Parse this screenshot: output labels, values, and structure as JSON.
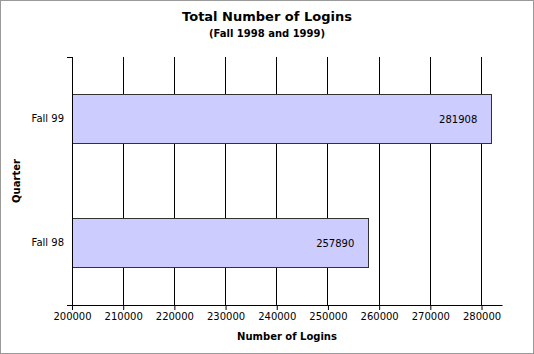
{
  "chart_data": {
    "type": "bar",
    "title": "Total Number of Logins",
    "subtitle": "(Fall 1998 and 1999)",
    "orientation": "horizontal",
    "categories": [
      "Fall 98",
      "Fall 99"
    ],
    "values": [
      257890,
      281908
    ],
    "color": "#ccccff",
    "xlabel": "Number of Logins",
    "ylabel": "Quarter",
    "xlim": [
      200000,
      284000
    ],
    "xticks": [
      200000,
      210000,
      220000,
      230000,
      240000,
      250000,
      260000,
      270000,
      280000
    ],
    "grid": true,
    "data_labels": true
  }
}
